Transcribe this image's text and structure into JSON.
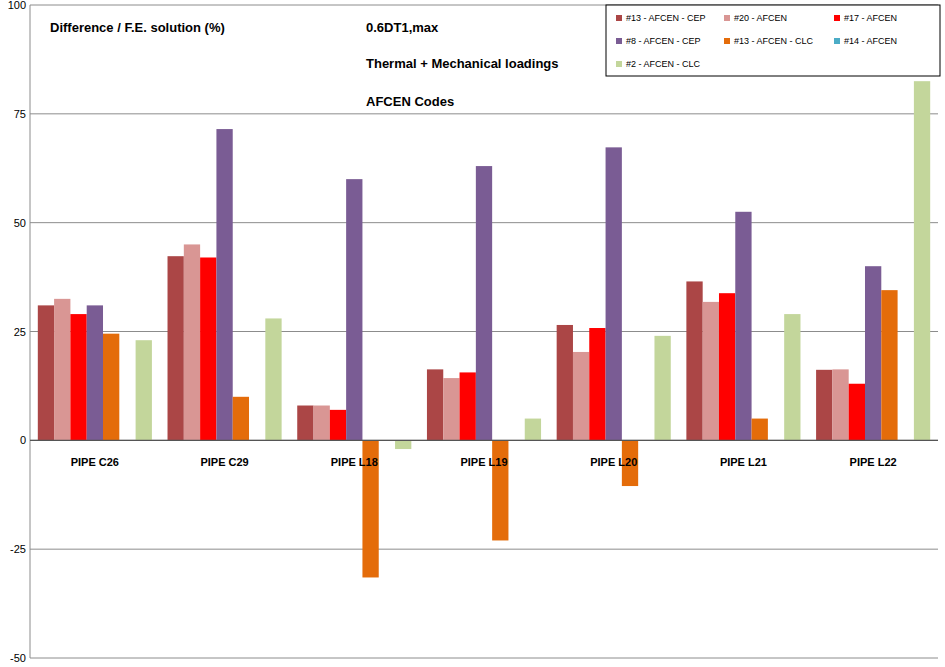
{
  "chart_data": {
    "type": "bar",
    "title": "Difference / F.E. solution (%)",
    "annotations": [
      "0.6DT1,max",
      "Thermal + Mechanical loadings",
      "AFCEN Codes"
    ],
    "categories": [
      "PIPE C26",
      "PIPE C29",
      "PIPE L18",
      "PIPE L19",
      "PIPE L20",
      "PIPE L21",
      "PIPE L22"
    ],
    "series": [
      {
        "name": "#13 - AFCEN - CEP",
        "color": "#ab4646",
        "values": [
          31,
          42.3,
          8,
          16.3,
          26.5,
          36.5,
          16.2
        ]
      },
      {
        "name": "#20 - AFCEN",
        "color": "#d99694",
        "values": [
          32.5,
          45,
          8,
          14.3,
          20.3,
          31.8,
          16.3
        ]
      },
      {
        "name": "#17 - AFCEN",
        "color": "#ff0000",
        "values": [
          29,
          42,
          7,
          15.6,
          25.8,
          33.8,
          13
        ]
      },
      {
        "name": "#8 - AFCEN - CEP",
        "color": "#7a5c94",
        "values": [
          31,
          71.5,
          60,
          63,
          67.3,
          52.5,
          40
        ]
      },
      {
        "name": "#13 - AFCEN - CLC",
        "color": "#e46c0a",
        "values": [
          24.5,
          10,
          -31.5,
          -23,
          -10.5,
          5,
          34.5
        ]
      },
      {
        "name": "#14 - AFCEN",
        "color": "#4bacc6",
        "values": [
          null,
          null,
          null,
          null,
          null,
          null,
          null
        ]
      },
      {
        "name": "#2 - AFCEN - CLC",
        "color": "#c3d69b",
        "values": [
          23,
          28,
          -2,
          5,
          24,
          29,
          82.5
        ]
      }
    ],
    "ylim": [
      -50,
      100
    ],
    "yticks": [
      -50,
      -25,
      0,
      25,
      50,
      75,
      100
    ],
    "grid": true,
    "legend": "top-right"
  }
}
